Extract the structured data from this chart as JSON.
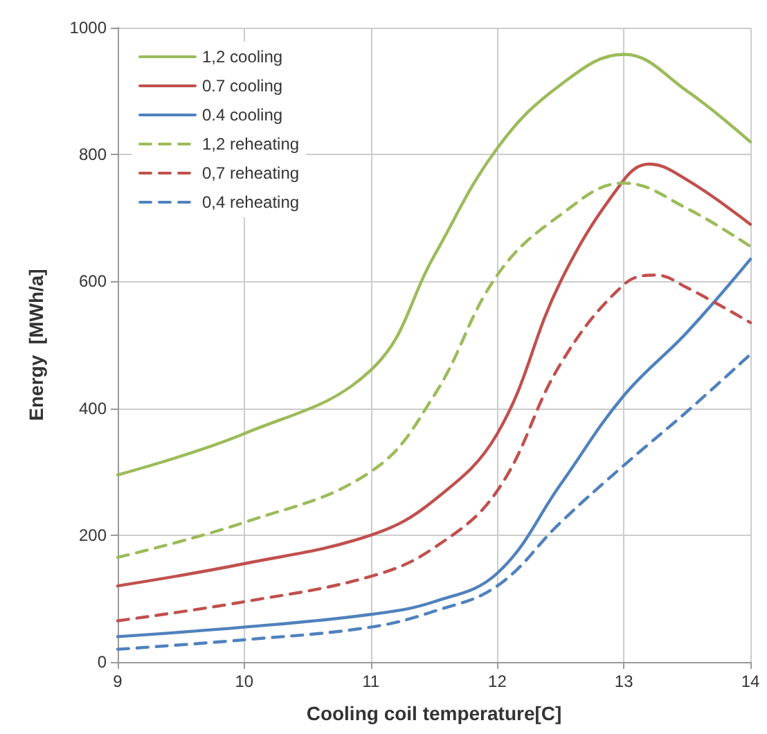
{
  "chart_data": {
    "type": "line",
    "xlabel": "Cooling coil temperature[C]",
    "ylabel": "Energy  [MWh/a]",
    "xlim": [
      9,
      14
    ],
    "xticks": [
      9,
      10,
      11,
      12,
      13,
      14
    ],
    "ylim": [
      0,
      1000
    ],
    "yticks": [
      0,
      200,
      400,
      600,
      800,
      1000
    ],
    "grid": true,
    "legend": "top left",
    "marker": "none",
    "series": [
      {
        "name": "1,2 cooling",
        "color": "#9bbb59",
        "line_style": "solid",
        "x": [
          9,
          10,
          11,
          11.5,
          12,
          12.5,
          13,
          13.5,
          14
        ],
        "values": [
          295,
          360,
          460,
          640,
          810,
          910,
          958,
          900,
          820
        ]
      },
      {
        "name": "0.7 cooling",
        "color": "#c0504d",
        "line_style": "solid",
        "x": [
          9,
          10,
          11,
          11.5,
          12,
          12.5,
          13,
          13.2,
          13.5,
          14
        ],
        "values": [
          120,
          155,
          200,
          255,
          360,
          600,
          760,
          785,
          760,
          690
        ]
      },
      {
        "name": "0.4 cooling",
        "color": "#4f81bd",
        "line_style": "solid",
        "x": [
          9,
          10,
          11,
          11.5,
          12,
          12.5,
          13,
          13.5,
          14
        ],
        "values": [
          40,
          55,
          75,
          95,
          140,
          280,
          420,
          520,
          635
        ]
      },
      {
        "name": "1,2 reheating",
        "color": "#9bbb59",
        "line_style": "dashed",
        "x": [
          9,
          10,
          11,
          11.5,
          12,
          12.5,
          13,
          13.5,
          14
        ],
        "values": [
          165,
          220,
          300,
          420,
          610,
          705,
          755,
          715,
          655
        ]
      },
      {
        "name": "0,7 reheating",
        "color": "#c0504d",
        "line_style": "dashed",
        "x": [
          9,
          10,
          11,
          11.5,
          12,
          12.5,
          13,
          13.25,
          13.5,
          14
        ],
        "values": [
          65,
          95,
          135,
          180,
          270,
          470,
          595,
          610,
          590,
          535
        ]
      },
      {
        "name": "0,4 reheating",
        "color": "#4f81bd",
        "line_style": "dashed",
        "x": [
          9,
          10,
          11,
          11.5,
          12,
          12.5,
          13,
          13.5,
          14
        ],
        "values": [
          20,
          35,
          55,
          80,
          120,
          220,
          310,
          395,
          485
        ]
      }
    ]
  }
}
